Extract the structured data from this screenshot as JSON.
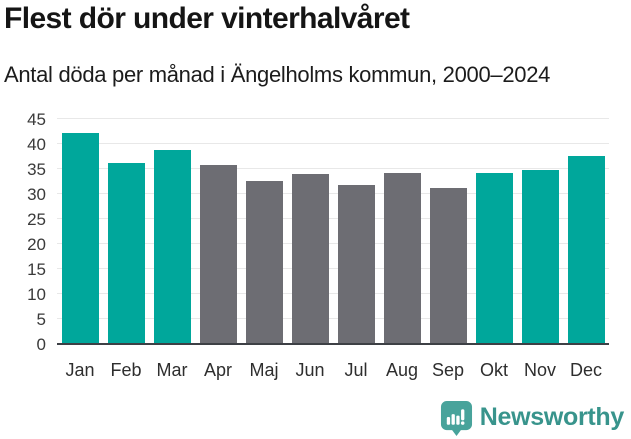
{
  "header": {
    "title": "Flest dör under vinterhalvåret",
    "subtitle": "Antal döda per månad i Ängelholms kommun, 2000–2024"
  },
  "chart_data": {
    "type": "bar",
    "title": "Flest dör under vinterhalvåret",
    "subtitle": "Antal döda per månad i Ängelholms kommun, 2000–2024",
    "categories": [
      "Jan",
      "Feb",
      "Mar",
      "Apr",
      "Maj",
      "Jun",
      "Jul",
      "Aug",
      "Sep",
      "Okt",
      "Nov",
      "Dec"
    ],
    "values": [
      42.1,
      36.1,
      38.7,
      35.7,
      32.4,
      33.8,
      31.6,
      34.0,
      31.1,
      34.0,
      34.7,
      37.5
    ],
    "highlighted": [
      true,
      true,
      true,
      false,
      false,
      false,
      false,
      false,
      false,
      true,
      true,
      true
    ],
    "xlabel": "",
    "ylabel": "",
    "ylim": [
      0,
      45
    ],
    "yticks": [
      0,
      5,
      10,
      15,
      20,
      25,
      30,
      35,
      40,
      45
    ],
    "grid": true,
    "legend": "none",
    "colors": {
      "highlight": "#00a79b",
      "muted": "#6d6d73",
      "gridline": "#e8e8e8",
      "axis_line": "#3d4045",
      "tick_text": "#3a3a3a"
    }
  },
  "branding": {
    "name": "Newsworthy",
    "icon": "newsworthy-logo-icon",
    "text_color": "#38948c",
    "icon_color": "#48a39b"
  }
}
